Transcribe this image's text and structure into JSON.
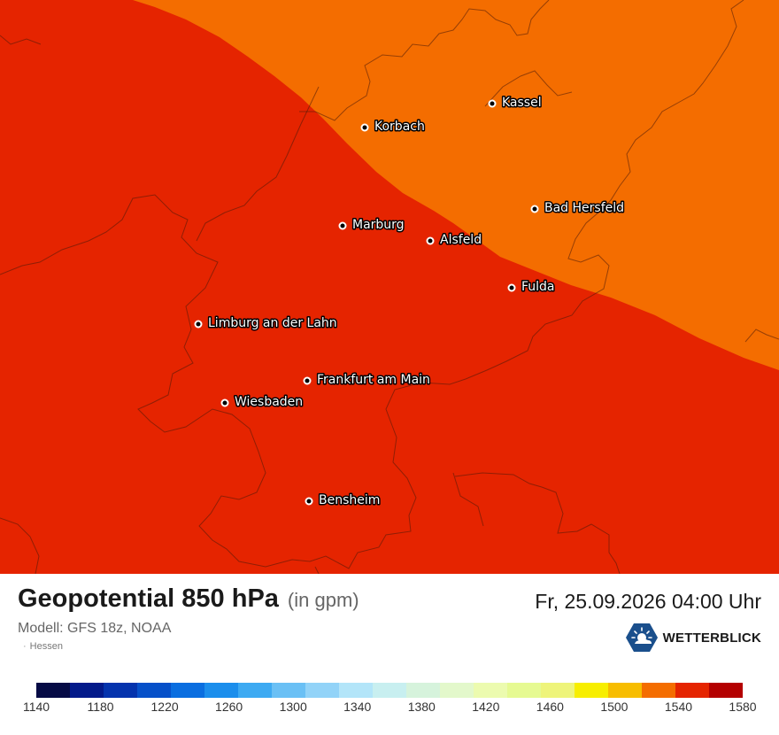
{
  "map": {
    "title": "Geopotential 850 hPa",
    "unit": "(in gpm)",
    "datetime": "Fr, 25.09.2026 04:00 Uhr",
    "model": "Modell: GFS 18z, NOAA",
    "region": "Hessen",
    "brand": "WETTERBLICK",
    "brand_icon": "sun-cloud-logo-icon",
    "fill_colors": {
      "level_1540": "#f46d00",
      "level_1560": "#e52400"
    },
    "cities": [
      {
        "name": "Kassel"
      },
      {
        "name": "Korbach"
      },
      {
        "name": "Bad Hersfeld"
      },
      {
        "name": "Marburg"
      },
      {
        "name": "Alsfeld"
      },
      {
        "name": "Fulda"
      },
      {
        "name": "Limburg an der Lahn"
      },
      {
        "name": "Frankfurt am Main"
      },
      {
        "name": "Wiesbaden"
      },
      {
        "name": "Bensheim"
      }
    ]
  },
  "legend": {
    "ticks": [
      "1140",
      "1180",
      "1220",
      "1260",
      "1300",
      "1340",
      "1380",
      "1420",
      "1460",
      "1500",
      "1540",
      "1580"
    ],
    "colors": [
      "#060b45",
      "#031a8a",
      "#0433ad",
      "#0650c9",
      "#0a6ee0",
      "#1b8eec",
      "#3daaf2",
      "#6ac0f5",
      "#92d3f8",
      "#b3e5f9",
      "#c8eff0",
      "#d6f3dc",
      "#e3f8cb",
      "#ecfbaf",
      "#e6fa92",
      "#eef47a",
      "#f7ee00",
      "#f7bd00",
      "#f46d00",
      "#e52400",
      "#b40000"
    ]
  }
}
